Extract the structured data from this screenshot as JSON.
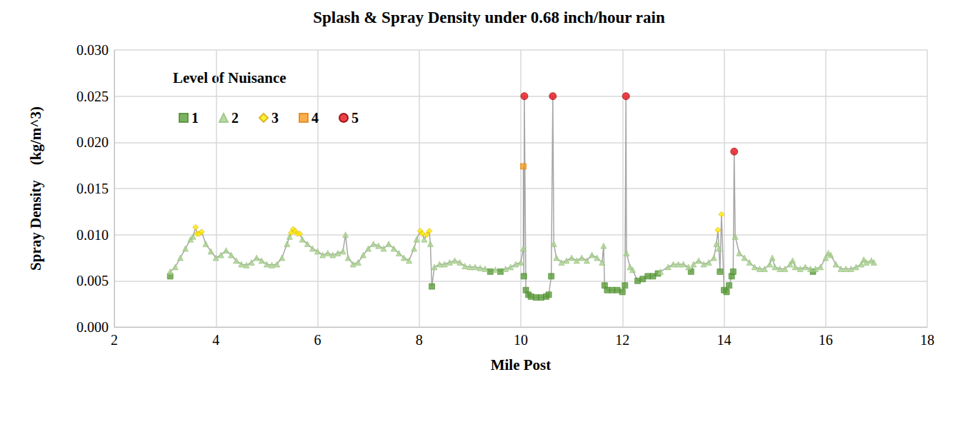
{
  "chart_data": {
    "type": "scatter",
    "title": "Splash & Spray Density under 0.68 inch/hour rain",
    "x_label": "Mile Post",
    "y_label": "Spray Density    (kg/m^3)",
    "annotations": [
      {
        "text": "Level of Nuisance"
      }
    ],
    "xlim": [
      2,
      18
    ],
    "xticks": [
      2,
      4,
      6,
      8,
      10,
      12,
      14,
      16,
      18
    ],
    "ylim": [
      0,
      0.03
    ],
    "yticks": [
      {
        "value": 0,
        "label": "0.000"
      },
      {
        "value": 0.005,
        "label": "0.005"
      },
      {
        "value": 0.01,
        "label": "0.010"
      },
      {
        "value": 0.015,
        "label": "0.015"
      },
      {
        "value": 0.02,
        "label": "0.020"
      },
      {
        "value": 0.025,
        "label": "0.025"
      },
      {
        "value": 0.03,
        "label": "0.030"
      }
    ],
    "grid": true,
    "legend": "top-left",
    "series": [
      {
        "name": "1",
        "color": "#5b9e3b",
        "marker": "square",
        "x": [
          3.1,
          8.25,
          9.4,
          9.6,
          10.06,
          10.1,
          10.15,
          10.2,
          10.3,
          10.4,
          10.5,
          10.55,
          10.6,
          11.65,
          11.7,
          11.8,
          11.9,
          12.0,
          12.05,
          12.3,
          12.4,
          12.5,
          12.6,
          12.7,
          13.35,
          13.92,
          14.0,
          14.05,
          14.1,
          14.15,
          14.18,
          15.75
        ],
        "values": [
          0.0055,
          0.0044,
          0.006,
          0.006,
          0.0055,
          0.004,
          0.0035,
          0.0033,
          0.0032,
          0.0032,
          0.0033,
          0.0035,
          0.0055,
          0.0045,
          0.004,
          0.004,
          0.004,
          0.0038,
          0.0045,
          0.005,
          0.0052,
          0.0055,
          0.0055,
          0.0058,
          0.006,
          0.006,
          0.004,
          0.0038,
          0.0045,
          0.0055,
          0.006,
          0.006
        ]
      },
      {
        "name": "2",
        "color": "#a9d18e",
        "marker": "triangle",
        "x": [
          3.1,
          3.2,
          3.3,
          3.4,
          3.5,
          3.55,
          3.8,
          3.9,
          4.0,
          4.1,
          4.2,
          4.3,
          4.4,
          4.5,
          4.6,
          4.7,
          4.8,
          4.9,
          5.0,
          5.1,
          5.2,
          5.3,
          5.4,
          5.45,
          5.7,
          5.8,
          5.9,
          6.0,
          6.1,
          6.2,
          6.3,
          6.4,
          6.5,
          6.55,
          6.6,
          6.7,
          6.8,
          6.9,
          7.0,
          7.1,
          7.2,
          7.3,
          7.4,
          7.5,
          7.6,
          7.7,
          7.8,
          7.9,
          7.95,
          8.1,
          8.22,
          8.3,
          8.4,
          8.5,
          8.6,
          8.7,
          8.8,
          8.9,
          9.0,
          9.1,
          9.2,
          9.3,
          9.5,
          9.7,
          9.8,
          9.9,
          10.0,
          10.05,
          10.65,
          10.7,
          10.8,
          10.9,
          11.0,
          11.1,
          11.2,
          11.3,
          11.4,
          11.5,
          11.6,
          11.63,
          12.08,
          12.15,
          12.2,
          12.75,
          12.9,
          13.0,
          13.1,
          13.2,
          13.3,
          13.4,
          13.5,
          13.6,
          13.7,
          13.8,
          13.85,
          13.9,
          14.22,
          14.3,
          14.4,
          14.5,
          14.6,
          14.7,
          14.8,
          14.9,
          14.95,
          15.0,
          15.1,
          15.2,
          15.3,
          15.35,
          15.4,
          15.5,
          15.6,
          15.7,
          15.8,
          15.9,
          16.0,
          16.05,
          16.1,
          16.2,
          16.3,
          16.4,
          16.5,
          16.6,
          16.7,
          16.75,
          16.8,
          16.9,
          16.95
        ],
        "values": [
          0.006,
          0.0065,
          0.0075,
          0.0085,
          0.0095,
          0.0098,
          0.009,
          0.0082,
          0.0075,
          0.0078,
          0.0083,
          0.0078,
          0.0072,
          0.0068,
          0.0067,
          0.007,
          0.0075,
          0.0072,
          0.0068,
          0.0067,
          0.0068,
          0.0075,
          0.009,
          0.0098,
          0.0095,
          0.009,
          0.0085,
          0.0082,
          0.0078,
          0.008,
          0.0078,
          0.008,
          0.0082,
          0.01,
          0.0075,
          0.0068,
          0.007,
          0.0078,
          0.0085,
          0.009,
          0.0088,
          0.0085,
          0.009,
          0.0085,
          0.008,
          0.0075,
          0.0072,
          0.0085,
          0.0095,
          0.0095,
          0.009,
          0.0065,
          0.0068,
          0.0068,
          0.007,
          0.0072,
          0.007,
          0.0066,
          0.0065,
          0.0065,
          0.0064,
          0.0063,
          0.0062,
          0.0063,
          0.0065,
          0.0068,
          0.007,
          0.0085,
          0.009,
          0.0075,
          0.007,
          0.0072,
          0.0075,
          0.0072,
          0.0075,
          0.0072,
          0.0078,
          0.0075,
          0.007,
          0.0088,
          0.008,
          0.0065,
          0.0062,
          0.006,
          0.0065,
          0.0068,
          0.0068,
          0.0068,
          0.0065,
          0.0068,
          0.0072,
          0.0068,
          0.007,
          0.0075,
          0.009,
          0.0085,
          0.0098,
          0.008,
          0.0075,
          0.007,
          0.0065,
          0.0063,
          0.0063,
          0.0068,
          0.0075,
          0.0065,
          0.0063,
          0.0063,
          0.0068,
          0.0072,
          0.0065,
          0.0063,
          0.0065,
          0.0063,
          0.0063,
          0.0065,
          0.0075,
          0.008,
          0.0078,
          0.0068,
          0.0063,
          0.0063,
          0.0063,
          0.0065,
          0.0068,
          0.0073,
          0.007,
          0.0072,
          0.007
        ]
      },
      {
        "name": "3",
        "color": "#ffee00",
        "marker": "diamond",
        "x": [
          3.6,
          3.63,
          3.67,
          3.72,
          5.48,
          5.52,
          5.56,
          5.6,
          5.65,
          8.02,
          8.06,
          8.15,
          8.2,
          13.88,
          13.95
        ],
        "values": [
          0.0108,
          0.0101,
          0.0101,
          0.0103,
          0.0102,
          0.0106,
          0.0104,
          0.0101,
          0.0101,
          0.0104,
          0.0101,
          0.01,
          0.0104,
          0.0105,
          0.0122
        ]
      },
      {
        "name": "4",
        "color": "#f79a1e",
        "marker": "square",
        "x": [
          10.05
        ],
        "values": [
          0.0174
        ]
      },
      {
        "name": "5",
        "color": "#e8101a",
        "marker": "circle",
        "x": [
          10.07,
          10.63,
          12.07,
          14.2
        ],
        "values": [
          0.025,
          0.025,
          0.025,
          0.019
        ]
      }
    ]
  }
}
